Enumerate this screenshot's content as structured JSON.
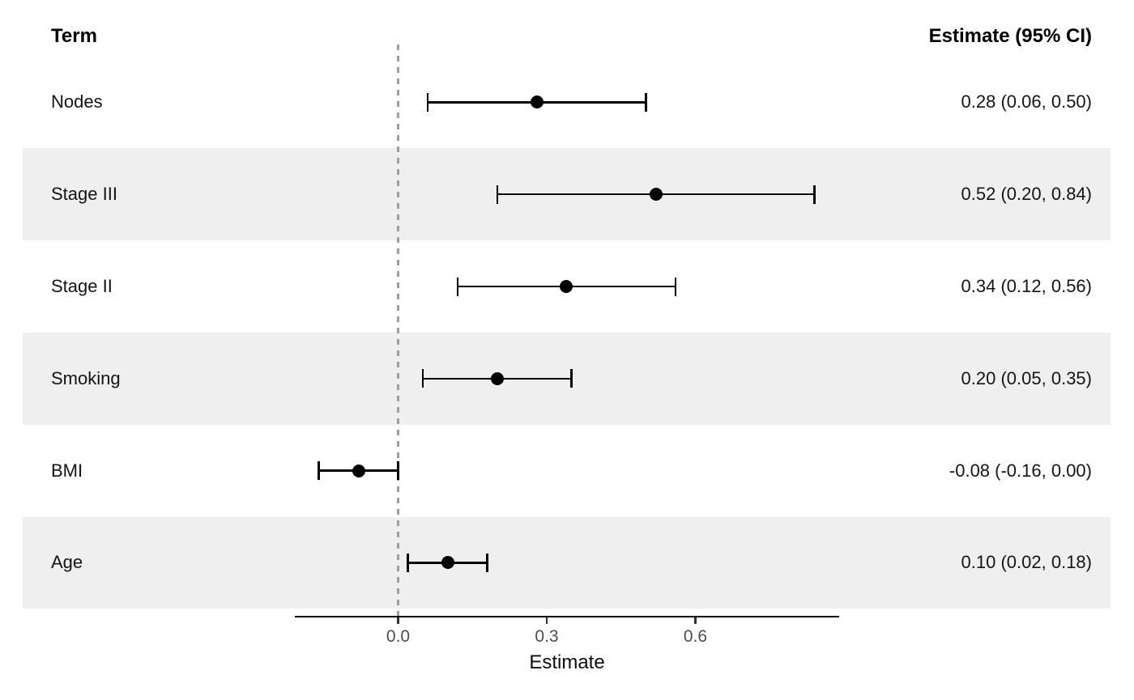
{
  "header": {
    "term": "Term",
    "estimate": "Estimate (95% CI)"
  },
  "colors": {
    "band_shaded": "#efefef",
    "band_plain": "#ffffff",
    "marker": "#000000",
    "ci_line": "#000000",
    "zero_reference_line": "#9e9e9e",
    "axis_line": "#000000",
    "tick_text": "#4d4d4d",
    "label_text": "#141414"
  },
  "chart_data": {
    "type": "forest",
    "title": "",
    "xlabel": "Estimate",
    "xlim": [
      -0.21,
      0.89
    ],
    "zero_line": 0.0,
    "grid": false,
    "ticks": [
      {
        "value": 0.0,
        "label": "0.0"
      },
      {
        "value": 0.3,
        "label": "0.3"
      },
      {
        "value": 0.6,
        "label": "0.6"
      }
    ],
    "rows": [
      {
        "term": "Nodes",
        "estimate": 0.28,
        "ci_low": 0.06,
        "ci_high": 0.5,
        "label": "0.28 (0.06, 0.50)",
        "shaded": false
      },
      {
        "term": "Stage III",
        "estimate": 0.52,
        "ci_low": 0.2,
        "ci_high": 0.84,
        "label": "0.52 (0.20, 0.84)",
        "shaded": true
      },
      {
        "term": "Stage II",
        "estimate": 0.34,
        "ci_low": 0.12,
        "ci_high": 0.56,
        "label": "0.34 (0.12, 0.56)",
        "shaded": false
      },
      {
        "term": "Smoking",
        "estimate": 0.2,
        "ci_low": 0.05,
        "ci_high": 0.35,
        "label": "0.20 (0.05, 0.35)",
        "shaded": true
      },
      {
        "term": "BMI",
        "estimate": -0.08,
        "ci_low": -0.16,
        "ci_high": 0.0,
        "label": "-0.08 (-0.16, 0.00)",
        "shaded": false
      },
      {
        "term": "Age",
        "estimate": 0.1,
        "ci_low": 0.02,
        "ci_high": 0.18,
        "label": "0.10 (0.02, 0.18)",
        "shaded": true
      }
    ]
  }
}
